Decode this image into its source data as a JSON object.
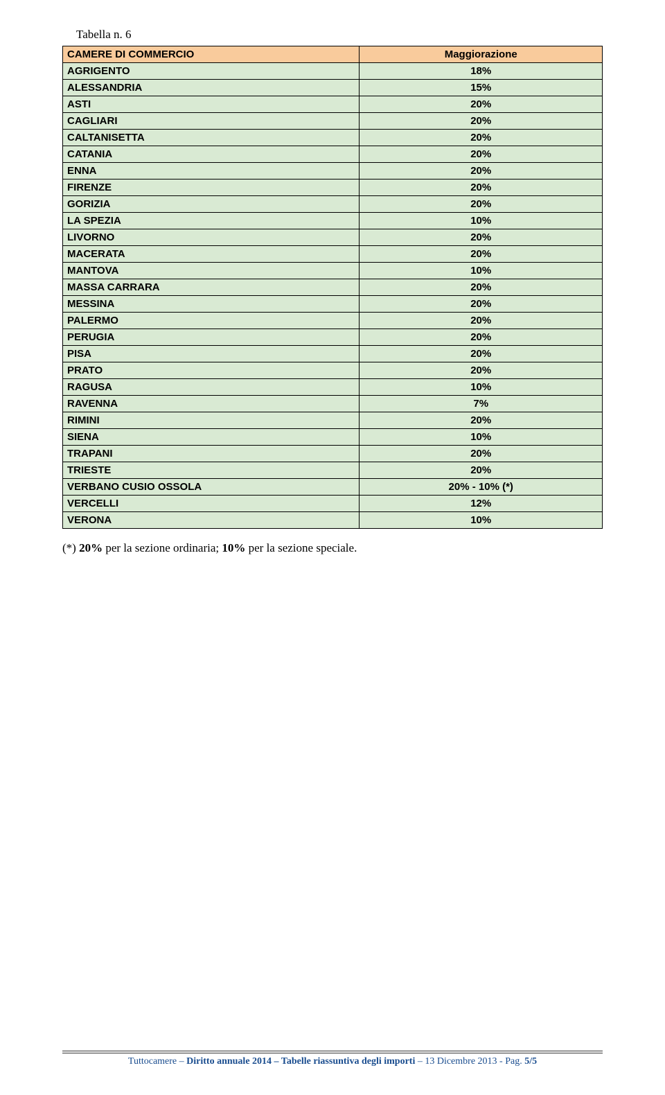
{
  "caption": "Tabella n. 6",
  "table": {
    "headers": [
      "CAMERE DI COMMERCIO",
      "Maggiorazione"
    ],
    "rows": [
      [
        "AGRIGENTO",
        "18%"
      ],
      [
        "ALESSANDRIA",
        "15%"
      ],
      [
        "ASTI",
        "20%"
      ],
      [
        "CAGLIARI",
        "20%"
      ],
      [
        "CALTANISETTA",
        "20%"
      ],
      [
        "CATANIA",
        "20%"
      ],
      [
        "ENNA",
        "20%"
      ],
      [
        "FIRENZE",
        "20%"
      ],
      [
        "GORIZIA",
        "20%"
      ],
      [
        "LA SPEZIA",
        "10%"
      ],
      [
        "LIVORNO",
        "20%"
      ],
      [
        "MACERATA",
        "20%"
      ],
      [
        "MANTOVA",
        "10%"
      ],
      [
        "MASSA CARRARA",
        "20%"
      ],
      [
        "MESSINA",
        "20%"
      ],
      [
        "PALERMO",
        "20%"
      ],
      [
        "PERUGIA",
        "20%"
      ],
      [
        "PISA",
        "20%"
      ],
      [
        "PRATO",
        "20%"
      ],
      [
        "RAGUSA",
        "10%"
      ],
      [
        "RAVENNA",
        "7%"
      ],
      [
        "RIMINI",
        "20%"
      ],
      [
        "SIENA",
        "10%"
      ],
      [
        "TRAPANI",
        "20%"
      ],
      [
        "TRIESTE",
        "20%"
      ],
      [
        "VERBANO CUSIO OSSOLA",
        "20% - 10%   (*)"
      ],
      [
        "VERCELLI",
        "12%"
      ],
      [
        "VERONA",
        "10%"
      ]
    ]
  },
  "footnote_prefix": "(*) ",
  "footnote_bold1": "20%",
  "footnote_mid": " per la sezione ordinaria; ",
  "footnote_bold2": "10%",
  "footnote_end": " per la sezione speciale.",
  "footer": {
    "part1": "Tuttocamere – ",
    "bold": "Diritto annuale 2014 – Tabelle riassuntiva degli importi",
    "part2": " – 13 Dicembre 2013 - Pag. ",
    "page": "5/5"
  }
}
